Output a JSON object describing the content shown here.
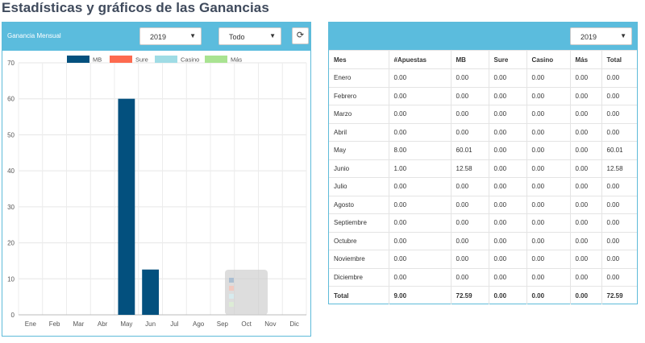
{
  "page": {
    "title": "Estadísticas y gráficos de las Ganancias"
  },
  "left_panel": {
    "title": "Ganancia Mensual",
    "year_select": "2019",
    "filter_select": "Todo",
    "refresh_icon": "refresh-icon"
  },
  "right_panel": {
    "year_select": "2019",
    "columns": [
      "Mes",
      "#Apuestas",
      "MB",
      "Sure",
      "Casino",
      "Más",
      "Total"
    ],
    "rows": [
      [
        "Enero",
        "0.00",
        "0.00",
        "0.00",
        "0.00",
        "0.00",
        "0.00"
      ],
      [
        "Febrero",
        "0.00",
        "0.00",
        "0.00",
        "0.00",
        "0.00",
        "0.00"
      ],
      [
        "Marzo",
        "0.00",
        "0.00",
        "0.00",
        "0.00",
        "0.00",
        "0.00"
      ],
      [
        "Abril",
        "0.00",
        "0.00",
        "0.00",
        "0.00",
        "0.00",
        "0.00"
      ],
      [
        "May",
        "8.00",
        "60.01",
        "0.00",
        "0.00",
        "0.00",
        "60.01"
      ],
      [
        "Junio",
        "1.00",
        "12.58",
        "0.00",
        "0.00",
        "0.00",
        "12.58"
      ],
      [
        "Julio",
        "0.00",
        "0.00",
        "0.00",
        "0.00",
        "0.00",
        "0.00"
      ],
      [
        "Agosto",
        "0.00",
        "0.00",
        "0.00",
        "0.00",
        "0.00",
        "0.00"
      ],
      [
        "Septiembre",
        "0.00",
        "0.00",
        "0.00",
        "0.00",
        "0.00",
        "0.00"
      ],
      [
        "Octubre",
        "0.00",
        "0.00",
        "0.00",
        "0.00",
        "0.00",
        "0.00"
      ],
      [
        "Noviembre",
        "0.00",
        "0.00",
        "0.00",
        "0.00",
        "0.00",
        "0.00"
      ],
      [
        "Diciembre",
        "0.00",
        "0.00",
        "0.00",
        "0.00",
        "0.00",
        "0.00"
      ]
    ],
    "total_row": [
      "Total",
      "9.00",
      "72.59",
      "0.00",
      "0.00",
      "0.00",
      "72.59"
    ]
  },
  "colors": {
    "header": "#5bbcdd",
    "mb": "#03507e",
    "sure": "#fd6a4f",
    "casino": "#9fdce5",
    "mas": "#a9e391"
  },
  "chart_data": {
    "type": "bar",
    "title": "",
    "categories": [
      "Ene",
      "Feb",
      "Mar",
      "Abr",
      "May",
      "Jun",
      "Jul",
      "Ago",
      "Sep",
      "Oct",
      "Nov",
      "Dic"
    ],
    "series": [
      {
        "name": "MB",
        "color": "#03507e",
        "values": [
          0,
          0,
          0,
          0,
          60.01,
          12.58,
          0,
          0,
          0,
          0,
          0,
          0
        ]
      },
      {
        "name": "Sure",
        "color": "#fd6a4f",
        "values": [
          0,
          0,
          0,
          0,
          0,
          0,
          0,
          0,
          0,
          0,
          0,
          0
        ]
      },
      {
        "name": "Casino",
        "color": "#9fdce5",
        "values": [
          0,
          0,
          0,
          0,
          0,
          0,
          0,
          0,
          0,
          0,
          0,
          0
        ]
      },
      {
        "name": "Más",
        "color": "#a9e391",
        "values": [
          0,
          0,
          0,
          0,
          0,
          0,
          0,
          0,
          0,
          0,
          0,
          0
        ]
      }
    ],
    "ylim": [
      0,
      70
    ],
    "yticks": [
      0,
      10,
      20,
      30,
      40,
      50,
      60,
      70
    ],
    "grid": true,
    "legend": "top-center",
    "stacked": true
  }
}
